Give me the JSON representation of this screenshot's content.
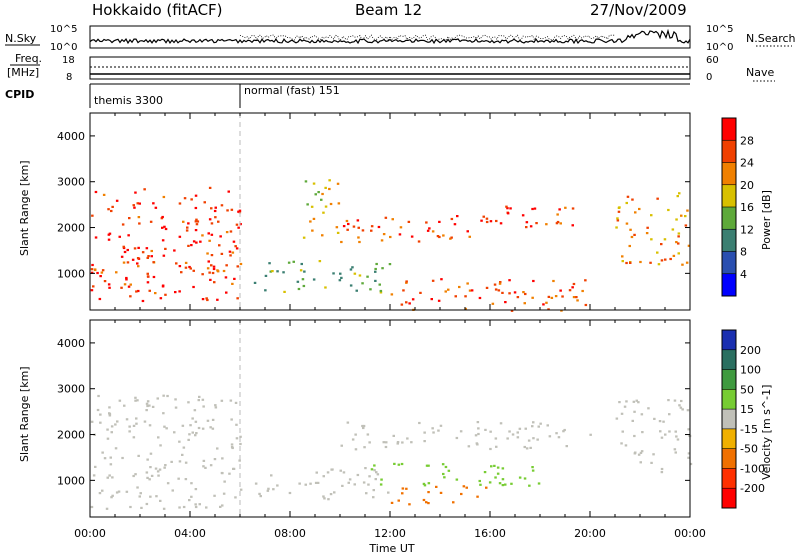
{
  "header": {
    "station": "Hokkaido (fitACF)",
    "beam": "Beam 12",
    "date": "27/Nov/2009"
  },
  "strip": {
    "nsky_label": "N.Sky",
    "nsearch_label": "N.Search",
    "freq_label_1": "Freq.",
    "freq_label_2": "[MHz]",
    "nave_label": "Nave",
    "cpid_label": "CPID",
    "left_ticks_top": [
      "10^5",
      "10^0"
    ],
    "right_ticks_top": [
      "10^5",
      "10^0"
    ],
    "freq_ticks": [
      "18",
      "8"
    ],
    "nave_ticks": [
      "60",
      "0"
    ],
    "cpid_segments": [
      {
        "label": "themis 3300",
        "start_hr": 0.0,
        "end_hr": 6.0
      },
      {
        "label": "normal (fast) 151",
        "start_hr": 6.0,
        "end_hr": 24.0
      }
    ]
  },
  "chart_data": [
    {
      "type": "heatmap",
      "name": "power",
      "title": "",
      "xlabel": "Time UT",
      "ylabel": "Slant Range [km]",
      "xlim": [
        0,
        24
      ],
      "ylim": [
        200,
        4500
      ],
      "x_ticks": [
        "00:00",
        "04:00",
        "08:00",
        "12:00",
        "16:00",
        "20:00",
        "00:00"
      ],
      "y_ticks": [
        "1000",
        "2000",
        "3000",
        "4000"
      ],
      "colorbar": {
        "label": "Power [dB]",
        "ticks": [
          "4",
          "8",
          "12",
          "16",
          "20",
          "24",
          "28"
        ],
        "colors": [
          "#0000ff",
          "#2a4fb0",
          "#3b7f72",
          "#5ea93a",
          "#d8c000",
          "#f08000",
          "#f04000",
          "#ff0000"
        ]
      },
      "scatter_regions": [
        {
          "t0": 0.0,
          "t1": 6.0,
          "r0": 400,
          "r1": 2900,
          "value": 28
        },
        {
          "t0": 0.0,
          "t1": 6.0,
          "r0": 1000,
          "r1": 1300,
          "value": 24
        },
        {
          "t0": 6.5,
          "t1": 12.0,
          "r0": 600,
          "r1": 1300,
          "value": 12
        },
        {
          "t0": 8.5,
          "t1": 10.0,
          "r0": 1800,
          "r1": 3200,
          "value": 20
        },
        {
          "t0": 10.0,
          "t1": 16.0,
          "r0": 1700,
          "r1": 2300,
          "value": 26
        },
        {
          "t0": 12.0,
          "t1": 20.0,
          "r0": 200,
          "r1": 900,
          "value": 26
        },
        {
          "t0": 15.5,
          "t1": 19.5,
          "r0": 1900,
          "r1": 2500,
          "value": 28
        },
        {
          "t0": 21.0,
          "t1": 24.0,
          "r0": 1200,
          "r1": 2800,
          "value": 22
        }
      ]
    },
    {
      "type": "heatmap",
      "name": "velocity",
      "title": "",
      "xlabel": "Time UT",
      "ylabel": "Slant Range [km]",
      "xlim": [
        0,
        24
      ],
      "ylim": [
        200,
        4500
      ],
      "x_ticks": [
        "00:00",
        "04:00",
        "08:00",
        "12:00",
        "16:00",
        "20:00",
        "00:00"
      ],
      "y_ticks": [
        "1000",
        "2000",
        "3000",
        "4000"
      ],
      "colorbar": {
        "label": "Velocity [m s^-1]",
        "ticks": [
          "200",
          "100",
          "50",
          "15",
          "-15",
          "-50",
          "-100",
          "-200"
        ],
        "colors": [
          "#1a2fb0",
          "#2a6f60",
          "#3f9a3f",
          "#77cc33",
          "#c0c0b8",
          "#f0b000",
          "#f07000",
          "#ff3000",
          "#ff0000"
        ]
      },
      "scatter_regions": [
        {
          "t0": 0.0,
          "t1": 6.0,
          "r0": 400,
          "r1": 2900,
          "value": 0
        },
        {
          "t0": 6.5,
          "t1": 12.0,
          "r0": 600,
          "r1": 1300,
          "value": 0
        },
        {
          "t0": 10.0,
          "t1": 20.0,
          "r0": 1700,
          "r1": 2300,
          "value": 0
        },
        {
          "t0": 12.0,
          "t1": 16.0,
          "r0": 500,
          "r1": 900,
          "value": -60
        },
        {
          "t0": 11.0,
          "t1": 18.0,
          "r0": 900,
          "r1": 1400,
          "value": 30
        },
        {
          "t0": 21.0,
          "t1": 24.0,
          "r0": 1200,
          "r1": 2800,
          "value": 0
        }
      ]
    }
  ]
}
